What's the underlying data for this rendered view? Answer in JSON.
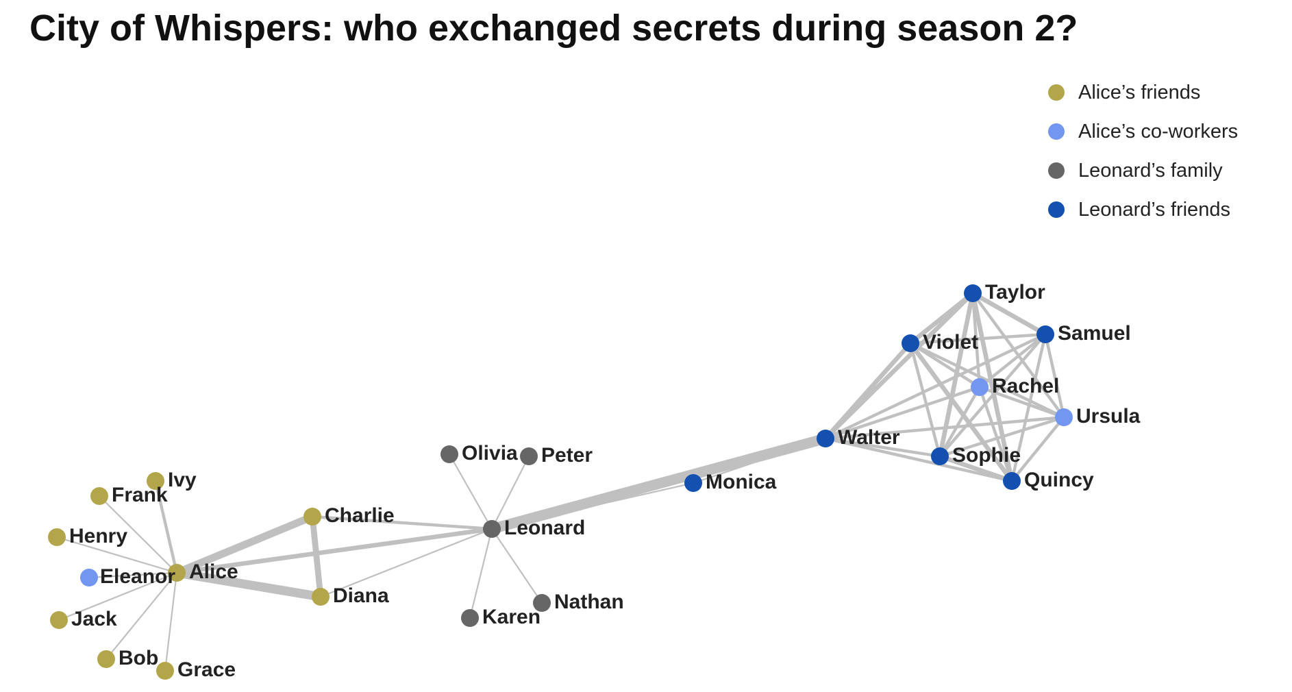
{
  "title": "City of Whispers: who exchanged secrets during season 2?",
  "legend": [
    {
      "label": "Alice’s friends",
      "color": "#b3a64a"
    },
    {
      "label": "Alice’s co-workers",
      "color": "#7396f0"
    },
    {
      "label": "Leonard’s family",
      "color": "#666666"
    },
    {
      "label": "Leonard’s friends",
      "color": "#1450b0"
    }
  ],
  "edge_color": "#c0c0c0",
  "nodes": [
    {
      "id": "Alice",
      "group": 0
    },
    {
      "id": "Bob",
      "group": 0
    },
    {
      "id": "Charlie",
      "group": 0
    },
    {
      "id": "Diana",
      "group": 0
    },
    {
      "id": "Eleanor",
      "group": 1
    },
    {
      "id": "Frank",
      "group": 0
    },
    {
      "id": "Grace",
      "group": 0
    },
    {
      "id": "Henry",
      "group": 0
    },
    {
      "id": "Ivy",
      "group": 0
    },
    {
      "id": "Jack",
      "group": 0
    },
    {
      "id": "Karen",
      "group": 2
    },
    {
      "id": "Leonard",
      "group": 2
    },
    {
      "id": "Monica",
      "group": 3
    },
    {
      "id": "Nathan",
      "group": 2
    },
    {
      "id": "Olivia",
      "group": 2
    },
    {
      "id": "Peter",
      "group": 2
    },
    {
      "id": "Quincy",
      "group": 3
    },
    {
      "id": "Rachel",
      "group": 1
    },
    {
      "id": "Samuel",
      "group": 3
    },
    {
      "id": "Sophie",
      "group": 3
    },
    {
      "id": "Taylor",
      "group": 3
    },
    {
      "id": "Ursula",
      "group": 1
    },
    {
      "id": "Violet",
      "group": 3
    },
    {
      "id": "Walter",
      "group": 3
    }
  ],
  "edges": [
    [
      "Alice",
      "Bob",
      1
    ],
    [
      "Alice",
      "Charlie",
      5
    ],
    [
      "Alice",
      "Diana",
      6
    ],
    [
      "Alice",
      "Eleanor",
      1
    ],
    [
      "Alice",
      "Frank",
      1
    ],
    [
      "Alice",
      "Grace",
      1
    ],
    [
      "Alice",
      "Henry",
      1
    ],
    [
      "Alice",
      "Ivy",
      2
    ],
    [
      "Alice",
      "Jack",
      1
    ],
    [
      "Alice",
      "Leonard",
      3
    ],
    [
      "Charlie",
      "Diana",
      4
    ],
    [
      "Charlie",
      "Leonard",
      2
    ],
    [
      "Diana",
      "Leonard",
      1
    ],
    [
      "Leonard",
      "Karen",
      1
    ],
    [
      "Leonard",
      "Nathan",
      1
    ],
    [
      "Leonard",
      "Olivia",
      1
    ],
    [
      "Leonard",
      "Peter",
      1
    ],
    [
      "Leonard",
      "Walter",
      7
    ],
    [
      "Leonard",
      "Monica",
      1
    ],
    [
      "Walter",
      "Monica",
      1
    ],
    [
      "Walter",
      "Taylor",
      3
    ],
    [
      "Walter",
      "Violet",
      3
    ],
    [
      "Walter",
      "Samuel",
      2
    ],
    [
      "Walter",
      "Rachel",
      2
    ],
    [
      "Walter",
      "Ursula",
      2
    ],
    [
      "Walter",
      "Sophie",
      2
    ],
    [
      "Walter",
      "Quincy",
      2
    ],
    [
      "Taylor",
      "Violet",
      3
    ],
    [
      "Taylor",
      "Samuel",
      3
    ],
    [
      "Taylor",
      "Rachel",
      2
    ],
    [
      "Taylor",
      "Ursula",
      2
    ],
    [
      "Taylor",
      "Sophie",
      3
    ],
    [
      "Taylor",
      "Quincy",
      3
    ],
    [
      "Violet",
      "Samuel",
      2
    ],
    [
      "Violet",
      "Rachel",
      2
    ],
    [
      "Violet",
      "Ursula",
      2
    ],
    [
      "Violet",
      "Sophie",
      2
    ],
    [
      "Violet",
      "Quincy",
      3
    ],
    [
      "Samuel",
      "Rachel",
      2
    ],
    [
      "Samuel",
      "Ursula",
      2
    ],
    [
      "Samuel",
      "Sophie",
      2
    ],
    [
      "Samuel",
      "Quincy",
      2
    ],
    [
      "Rachel",
      "Ursula",
      2
    ],
    [
      "Rachel",
      "Sophie",
      2
    ],
    [
      "Rachel",
      "Quincy",
      2
    ],
    [
      "Ursula",
      "Sophie",
      2
    ],
    [
      "Ursula",
      "Quincy",
      2
    ],
    [
      "Sophie",
      "Quincy",
      3
    ]
  ]
}
